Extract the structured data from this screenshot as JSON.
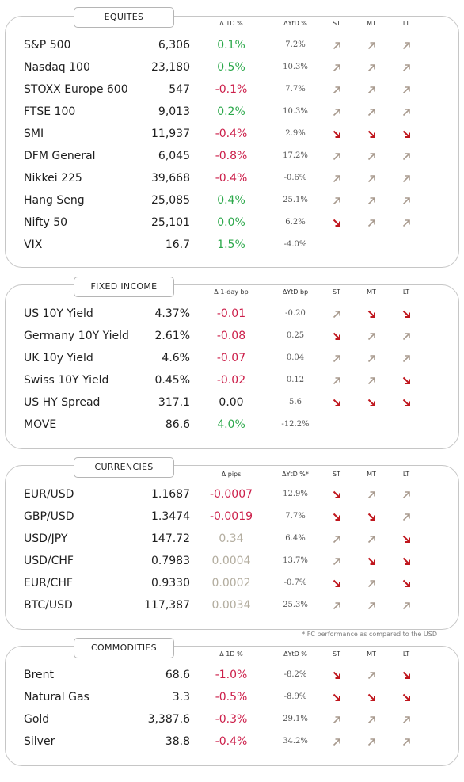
{
  "colors": {
    "green": "#2ba84a",
    "red": "#cc1f4a",
    "grey": "#b3ad9f",
    "up_arrow": "#a89a8e",
    "down_arrow": "#c0171e"
  },
  "sections": [
    {
      "key": "equities",
      "title": "EQUITES",
      "box_top": 20,
      "box_height": 318,
      "tab_top": 9,
      "header_top": 25,
      "row_start": 43,
      "headers": {
        "d1": "Δ 1D %",
        "ytd": "ΔYtD %",
        "st": "ST",
        "mt": "MT",
        "lt": "LT"
      },
      "rows": [
        {
          "name": "S&P 500",
          "value": "6,306",
          "d1": "0.1%",
          "d1_color": "green",
          "ytd": "7.2%",
          "st": "up",
          "mt": "up",
          "lt": "up"
        },
        {
          "name": "Nasdaq 100",
          "value": "23,180",
          "d1": "0.5%",
          "d1_color": "green",
          "ytd": "10.3%",
          "st": "up",
          "mt": "up",
          "lt": "up"
        },
        {
          "name": "STOXX Europe 600",
          "value": "547",
          "d1": "-0.1%",
          "d1_color": "red",
          "ytd": "7.7%",
          "st": "up",
          "mt": "up",
          "lt": "up"
        },
        {
          "name": "FTSE 100",
          "value": "9,013",
          "d1": "0.2%",
          "d1_color": "green",
          "ytd": "10.3%",
          "st": "up",
          "mt": "up",
          "lt": "up"
        },
        {
          "name": "SMI",
          "value": "11,937",
          "d1": "-0.4%",
          "d1_color": "red",
          "ytd": "2.9%",
          "st": "down",
          "mt": "down",
          "lt": "down"
        },
        {
          "name": "DFM General",
          "value": "6,045",
          "d1": "-0.8%",
          "d1_color": "red",
          "ytd": "17.2%",
          "st": "up",
          "mt": "up",
          "lt": "up"
        },
        {
          "name": "Nikkei 225",
          "value": "39,668",
          "d1": "-0.4%",
          "d1_color": "red",
          "ytd": "-0.6%",
          "st": "up",
          "mt": "up",
          "lt": "up"
        },
        {
          "name": "Hang Seng",
          "value": "25,085",
          "d1": "0.4%",
          "d1_color": "green",
          "ytd": "25.1%",
          "st": "up",
          "mt": "up",
          "lt": "up"
        },
        {
          "name": "Nifty  50",
          "value": "25,101",
          "d1": "0.0%",
          "d1_color": "green",
          "ytd": "6.2%",
          "st": "down",
          "mt": "up",
          "lt": "up"
        },
        {
          "name": "VIX",
          "value": "16.7",
          "d1": "1.5%",
          "d1_color": "green",
          "ytd": "-4.0%",
          "st": "",
          "mt": "",
          "lt": ""
        }
      ]
    },
    {
      "key": "fixed_income",
      "title": "FIXED INCOME",
      "box_top": 359,
      "box_height": 208,
      "tab_top": 349,
      "header_top": 364,
      "row_start": 382,
      "headers": {
        "d1": "Δ 1-day bp",
        "ytd": "ΔYtD bp",
        "st": "ST",
        "mt": "MT",
        "lt": "LT"
      },
      "rows": [
        {
          "name": "US 10Y Yield",
          "value": "4.37%",
          "d1": "-0.01",
          "d1_color": "red",
          "ytd": "-0.20",
          "st": "up",
          "mt": "down",
          "lt": "down"
        },
        {
          "name": "Germany 10Y Yield",
          "value": "2.61%",
          "d1": "-0.08",
          "d1_color": "red",
          "ytd": "0.25",
          "st": "down",
          "mt": "up",
          "lt": "up"
        },
        {
          "name": "UK 10y Yield",
          "value": "4.6%",
          "d1": "-0.07",
          "d1_color": "red",
          "ytd": "0.04",
          "st": "up",
          "mt": "up",
          "lt": "up"
        },
        {
          "name": "Swiss 10Y Yield",
          "value": "0.45%",
          "d1": "-0.02",
          "d1_color": "red",
          "ytd": "0.12",
          "st": "up",
          "mt": "up",
          "lt": "down"
        },
        {
          "name": "US HY Spread",
          "value": "317.1",
          "d1": "0.00",
          "d1_color": "dark",
          "ytd": "5.6",
          "st": "down",
          "mt": "down",
          "lt": "down"
        },
        {
          "name": "MOVE",
          "value": "86.6",
          "d1": "4.0%",
          "d1_color": "green",
          "ytd": "-12.2%",
          "st": "",
          "mt": "",
          "lt": ""
        }
      ]
    },
    {
      "key": "currencies",
      "title": "CURRENCIES",
      "box_top": 587,
      "box_height": 208,
      "tab_top": 577,
      "header_top": 594,
      "row_start": 610,
      "headers": {
        "d1": "Δ pips",
        "ytd": "ΔYtD %*",
        "st": "ST",
        "mt": "MT",
        "lt": "LT"
      },
      "rows": [
        {
          "name": "EUR/USD",
          "value": "1.1687",
          "d1": "-0.0007",
          "d1_color": "red",
          "ytd": "12.9%",
          "st": "down",
          "mt": "up",
          "lt": "up"
        },
        {
          "name": "GBP/USD",
          "value": "1.3474",
          "d1": "-0.0019",
          "d1_color": "red",
          "ytd": "7.7%",
          "st": "down",
          "mt": "down",
          "lt": "up"
        },
        {
          "name": "USD/JPY",
          "value": "147.72",
          "d1": "0.34",
          "d1_color": "grey",
          "ytd": "6.4%",
          "st": "up",
          "mt": "up",
          "lt": "down"
        },
        {
          "name": "USD/CHF",
          "value": "0.7983",
          "d1": "0.0004",
          "d1_color": "grey",
          "ytd": "13.7%",
          "st": "up",
          "mt": "down",
          "lt": "down"
        },
        {
          "name": "EUR/CHF",
          "value": "0.9330",
          "d1": "0.0002",
          "d1_color": "grey",
          "ytd": "-0.7%",
          "st": "down",
          "mt": "up",
          "lt": "down"
        },
        {
          "name": "BTC/USD",
          "value": "117,387",
          "d1": "0.0034",
          "d1_color": "grey",
          "ytd": "25.3%",
          "st": "up",
          "mt": "up",
          "lt": "up"
        }
      ]
    },
    {
      "key": "commodities",
      "title": "COMMODITIES",
      "box_top": 815,
      "box_height": 152,
      "tab_top": 805,
      "header_top": 821,
      "row_start": 838,
      "headers": {
        "d1": "Δ 1D %",
        "ytd": "ΔYtD %",
        "st": "ST",
        "mt": "MT",
        "lt": "LT"
      },
      "rows": [
        {
          "name": "Brent",
          "value": "68.6",
          "d1": "-1.0%",
          "d1_color": "red",
          "ytd": "-8.2%",
          "st": "down",
          "mt": "up",
          "lt": "down"
        },
        {
          "name": "Natural Gas",
          "value": "3.3",
          "d1": "-0.5%",
          "d1_color": "red",
          "ytd": "-8.9%",
          "st": "down",
          "mt": "down",
          "lt": "down"
        },
        {
          "name": "Gold",
          "value": "3,387.6",
          "d1": "-0.3%",
          "d1_color": "red",
          "ytd": "29.1%",
          "st": "up",
          "mt": "up",
          "lt": "up"
        },
        {
          "name": "Silver",
          "value": "38.8",
          "d1": "-0.4%",
          "d1_color": "red",
          "ytd": "34.2%",
          "st": "up",
          "mt": "up",
          "lt": "up"
        }
      ]
    }
  ],
  "footnote": "* FC performance as compared to the USD"
}
